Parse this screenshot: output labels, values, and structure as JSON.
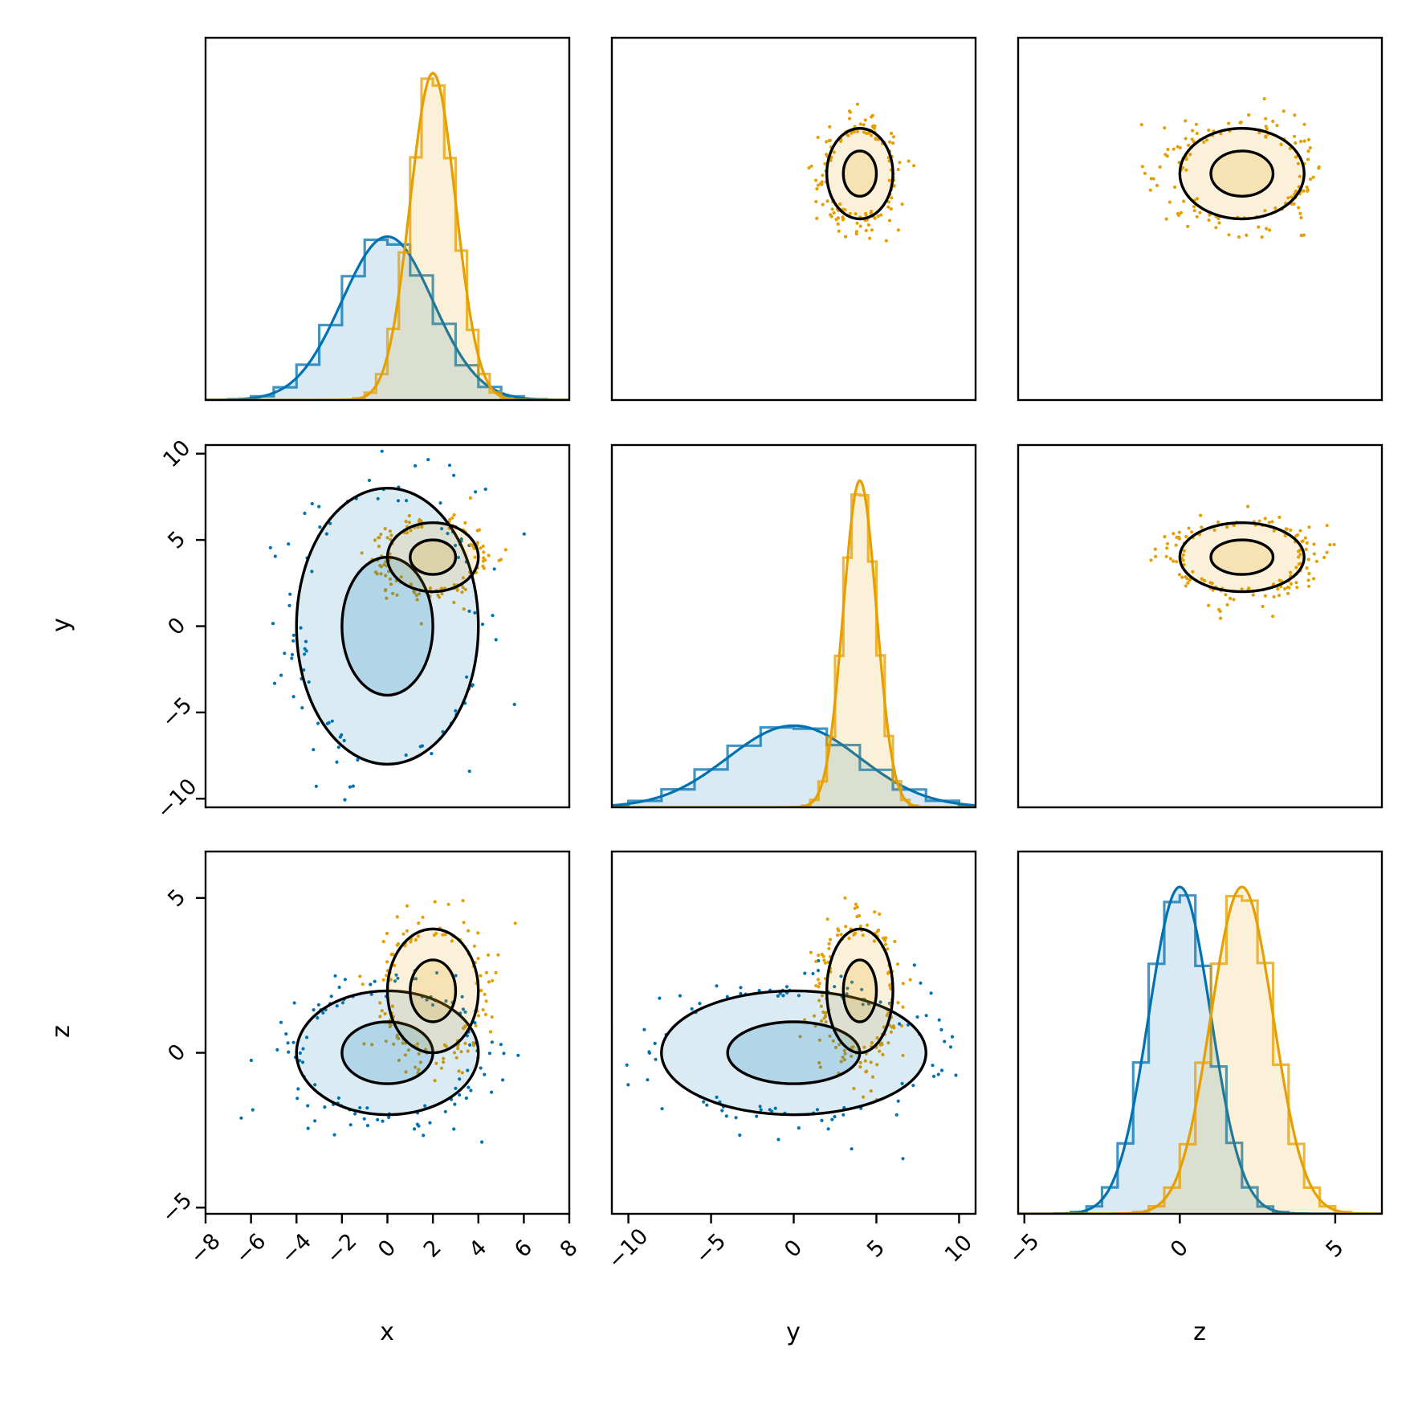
{
  "chart_data": {
    "type": "corner",
    "variables": [
      {
        "name": "x",
        "lim": [
          -8,
          8
        ],
        "ticks": [
          -8,
          -6,
          -4,
          -2,
          0,
          2,
          4,
          6,
          8
        ],
        "tick_labels": [
          "−8",
          "−6",
          "−4",
          "−2",
          "0",
          "2",
          "4",
          "6",
          "8"
        ]
      },
      {
        "name": "y",
        "lim": [
          -11,
          11
        ],
        "ticks": [
          -10,
          -5,
          0,
          5,
          10
        ],
        "tick_labels": [
          "−10",
          "−5",
          "0",
          "5",
          "10"
        ]
      },
      {
        "name": "z",
        "lim": [
          -5.2,
          6.5
        ],
        "ticks": [
          -5,
          0,
          5
        ],
        "tick_labels": [
          "−5",
          "0",
          "5"
        ]
      }
    ],
    "lower_panel_ylims": {
      "y": [
        -10.5,
        10.5
      ],
      "z": [
        -5.2,
        6.5
      ]
    },
    "series": [
      {
        "color": "#0072b2",
        "mean": [
          0,
          0,
          0
        ],
        "std": [
          2.0,
          4.0,
          1.0
        ],
        "diagonal_peak_density": [
          0.2,
          0.1,
          0.4
        ],
        "contours_present_in": [
          "x-y",
          "x-z",
          "y-z"
        ],
        "scatter_present_in": [
          "x-y",
          "x-z",
          "y-z"
        ]
      },
      {
        "color": "#e69f00",
        "mean": [
          2,
          4,
          2
        ],
        "std": [
          1.0,
          1.0,
          1.0
        ],
        "diagonal_peak_density": [
          0.4,
          0.4,
          0.4
        ],
        "contours_present_in": [
          "x-y",
          "x-z",
          "y-z",
          "y-x",
          "z-x",
          "z-y"
        ],
        "scatter_present_in": [
          "x-y",
          "x-z",
          "y-z",
          "y-x",
          "z-x",
          "z-y"
        ]
      }
    ],
    "contour_levels_sigma": [
      1,
      2
    ],
    "grid": false,
    "legend": "none"
  }
}
